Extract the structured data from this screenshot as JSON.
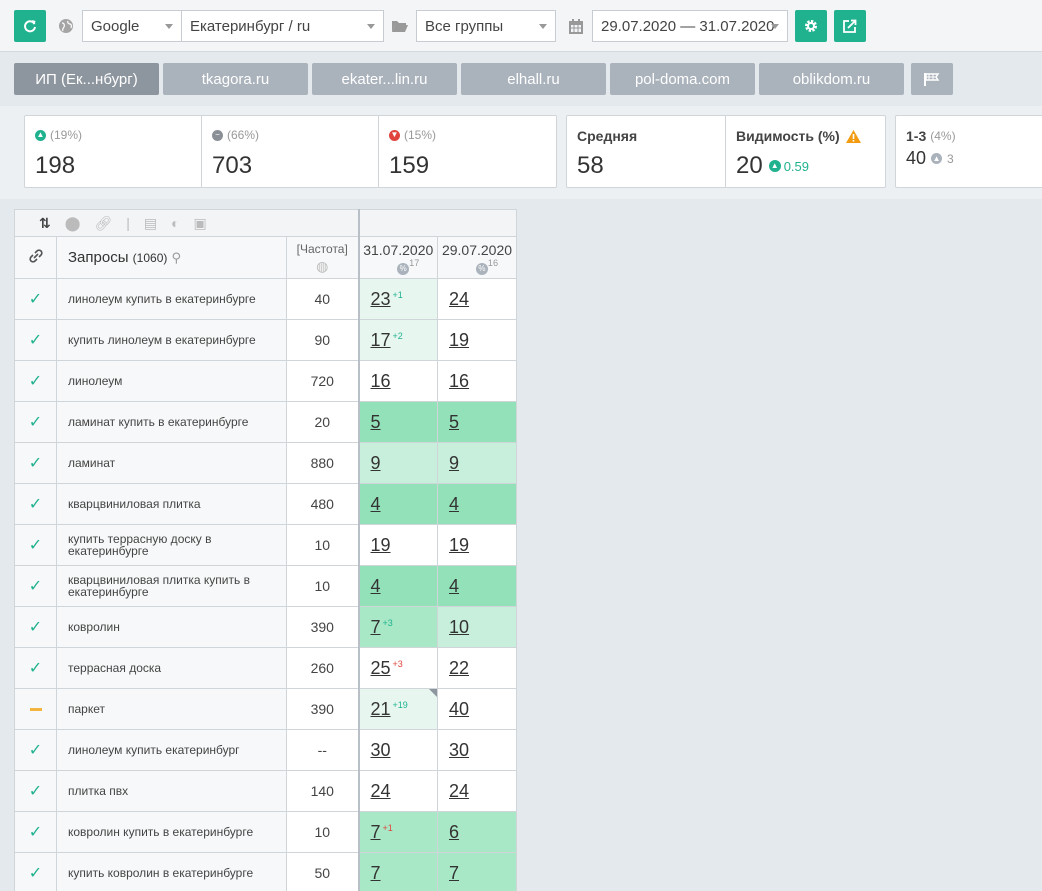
{
  "toolbar": {
    "engine": "Google",
    "region": "Екатеринбург / ru",
    "group": "Все группы",
    "date_range": "29.07.2020 — 31.07.2020"
  },
  "tabs": [
    "ИП (Ек...нбург)",
    "tkagora.ru",
    "ekater...lin.ru",
    "elhall.ru",
    "pol-doma.com",
    "oblikdom.ru"
  ],
  "stats": {
    "up": {
      "pct": "(19%)",
      "value": "198"
    },
    "same": {
      "pct": "(66%)",
      "value": "703"
    },
    "down": {
      "pct": "(15%)",
      "value": "159"
    },
    "avg": {
      "label": "Средняя",
      "value": "58"
    },
    "visibility": {
      "label": "Видимость (%)",
      "value": "20",
      "delta": "0.59"
    },
    "top3": {
      "label": "1-3",
      "pct": "(4%)",
      "value": "40",
      "delta": "3"
    }
  },
  "table": {
    "queries_label": "Запросы",
    "queries_count": "(1060)",
    "freq_label": "[Частота]",
    "dates": [
      {
        "date": "31.07.2020",
        "count": "17"
      },
      {
        "date": "29.07.2020",
        "count": "16"
      }
    ],
    "rows": [
      {
        "status": "ok",
        "query": "линолеум купить в екатеринбурге",
        "freq": "40",
        "d1": "23",
        "d1_delta": "+1",
        "d2": "24"
      },
      {
        "status": "ok",
        "query": "купить линолеум в екатеринбурге",
        "freq": "90",
        "d1": "17",
        "d1_delta": "+2",
        "d2": "19"
      },
      {
        "status": "ok",
        "query": "линолеум",
        "freq": "720",
        "d1": "16",
        "d1_delta": "",
        "d2": "16"
      },
      {
        "status": "ok",
        "query": "ламинат купить в екатеринбурге",
        "freq": "20",
        "d1": "5",
        "d1_delta": "",
        "d2": "5"
      },
      {
        "status": "ok",
        "query": "ламинат",
        "freq": "880",
        "d1": "9",
        "d1_delta": "",
        "d2": "9"
      },
      {
        "status": "ok",
        "query": "кварцвиниловая плитка",
        "freq": "480",
        "d1": "4",
        "d1_delta": "",
        "d2": "4"
      },
      {
        "status": "ok",
        "query": "купить террасную доску в екатеринбурге",
        "freq": "10",
        "d1": "19",
        "d1_delta": "",
        "d2": "19"
      },
      {
        "status": "ok",
        "query": "кварцвиниловая плитка купить в екатеринбурге",
        "freq": "10",
        "d1": "4",
        "d1_delta": "",
        "d2": "4"
      },
      {
        "status": "ok",
        "query": "ковролин",
        "freq": "390",
        "d1": "7",
        "d1_delta": "+3",
        "d2": "10"
      },
      {
        "status": "ok",
        "query": "террасная доска",
        "freq": "260",
        "d1": "25",
        "d1_delta": "+3",
        "d2": "22"
      },
      {
        "status": "partial",
        "query": "паркет",
        "freq": "390",
        "d1": "21",
        "d1_delta": "+19",
        "d2": "40"
      },
      {
        "status": "ok",
        "query": "линолеум купить екатеринбург",
        "freq": "--",
        "d1": "30",
        "d1_delta": "",
        "d2": "30"
      },
      {
        "status": "ok",
        "query": "плитка пвх",
        "freq": "140",
        "d1": "24",
        "d1_delta": "",
        "d2": "24"
      },
      {
        "status": "ok",
        "query": "ковролин купить в екатеринбурге",
        "freq": "10",
        "d1": "7",
        "d1_delta": "+1",
        "d2": "6"
      },
      {
        "status": "ok",
        "query": "купить ковролин в екатеринбурге",
        "freq": "50",
        "d1": "7",
        "d1_delta": "",
        "d2": "7"
      }
    ]
  }
}
